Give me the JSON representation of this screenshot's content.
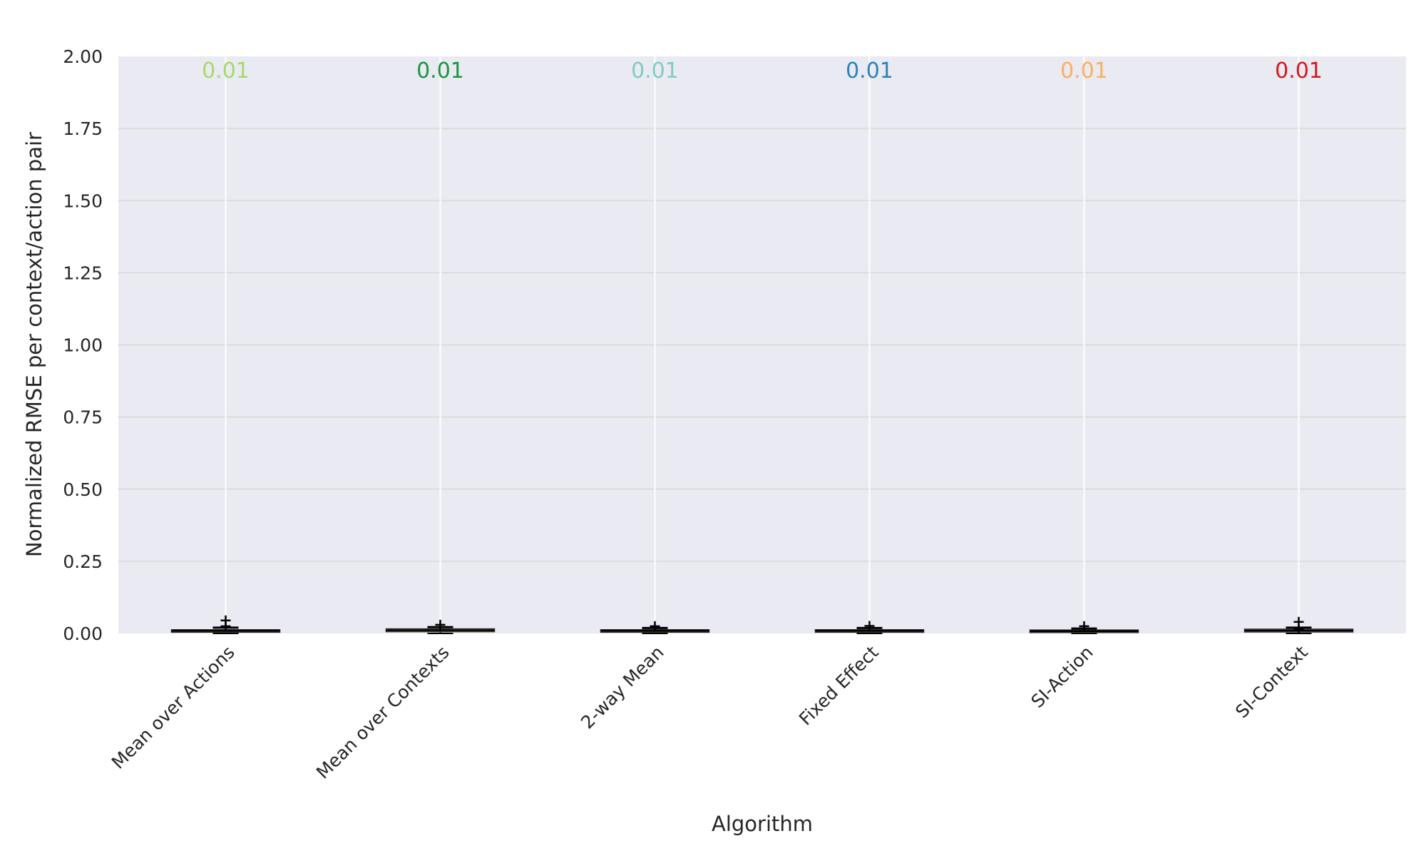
{
  "chart_data": {
    "type": "box",
    "title": "",
    "xlabel": "Algorithm",
    "ylabel": "Normalized RMSE per context/action pair",
    "ylim": [
      0,
      2
    ],
    "yticks": [
      "0.00",
      "0.25",
      "0.50",
      "0.75",
      "1.00",
      "1.25",
      "1.50",
      "1.75",
      "2.00"
    ],
    "grid": true,
    "categories": [
      "Mean over Actions",
      "Mean over Contexts",
      "2-way Mean",
      "Fixed Effect",
      "SI-Action",
      "SI-Context"
    ],
    "series": [
      {
        "category": "Mean over Actions",
        "median_label": "0.01",
        "color": "#a6d96a",
        "min": 0.0,
        "q1": 0.004,
        "median": 0.009,
        "q3": 0.013,
        "max": 0.02,
        "outliers": [
          0.025,
          0.045
        ]
      },
      {
        "category": "Mean over Contexts",
        "median_label": "0.01",
        "color": "#1a9641",
        "min": 0.0,
        "q1": 0.006,
        "median": 0.011,
        "q3": 0.016,
        "max": 0.022,
        "outliers": [
          0.03
        ]
      },
      {
        "category": "2-way Mean",
        "median_label": "0.01",
        "color": "#80cdc1",
        "min": 0.0,
        "q1": 0.004,
        "median": 0.009,
        "q3": 0.013,
        "max": 0.019,
        "outliers": [
          0.025
        ]
      },
      {
        "category": "Fixed Effect",
        "median_label": "0.01",
        "color": "#2b83ba",
        "min": 0.0,
        "q1": 0.004,
        "median": 0.009,
        "q3": 0.013,
        "max": 0.019,
        "outliers": [
          0.026
        ]
      },
      {
        "category": "SI-Action",
        "median_label": "0.01",
        "color": "#fdae61",
        "min": 0.0,
        "q1": 0.003,
        "median": 0.008,
        "q3": 0.012,
        "max": 0.017,
        "outliers": [
          0.025
        ]
      },
      {
        "category": "SI-Context",
        "median_label": "0.01",
        "color": "#d7191c",
        "min": 0.0,
        "q1": 0.005,
        "median": 0.01,
        "q3": 0.015,
        "max": 0.02,
        "outliers": [
          0.015,
          0.04
        ]
      }
    ],
    "style": {
      "plot_bg": "#eaeaf2",
      "grid_color": "#ffffff",
      "hgrid_color": "#dcdcdc",
      "box_fill": "#f4a582",
      "box_edge": "#333333",
      "whisker_color": "#000000"
    }
  }
}
